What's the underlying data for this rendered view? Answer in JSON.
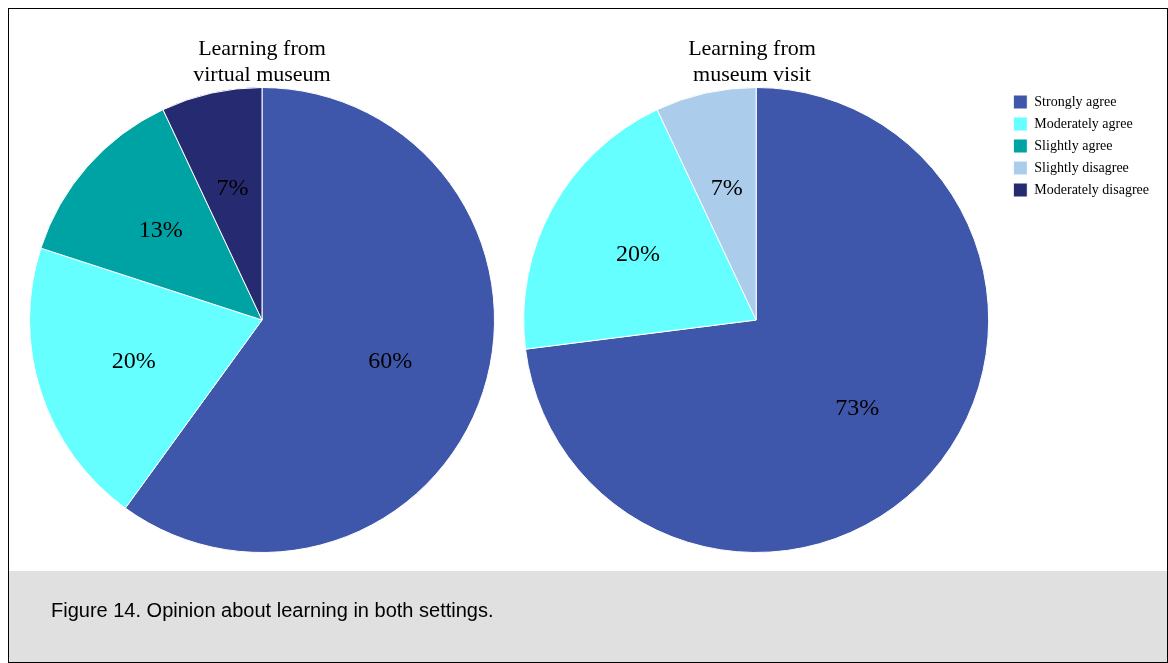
{
  "chart_data": [
    {
      "type": "pie",
      "title": "Learning from virtual museum",
      "categories": [
        null,
        null,
        null,
        null
      ],
      "values": [
        60,
        20,
        13,
        7
      ],
      "value_labels": [
        "60%",
        "20%",
        "13%",
        "7%"
      ],
      "colors": [
        "#3f57ab",
        "#66ffff",
        "#00a3a3",
        "#262a70"
      ],
      "legend": false
    },
    {
      "type": "pie",
      "title": "Learning from museum visit",
      "categories": [
        "Strongly agree",
        "Moderately agree",
        "Slightly agree",
        "Slightly disagree",
        "Moderately disagree"
      ],
      "values": [
        73,
        20,
        0,
        7,
        0
      ],
      "value_labels": [
        "73%",
        "20%",
        null,
        "7%",
        null
      ],
      "colors": [
        "#3f57ab",
        "#66ffff",
        "#00a3a3",
        "#abcdeb",
        "#262a70"
      ],
      "legend": "right",
      "annotations": [
        "Figure 14. Opinion about learning in both settings."
      ]
    }
  ]
}
